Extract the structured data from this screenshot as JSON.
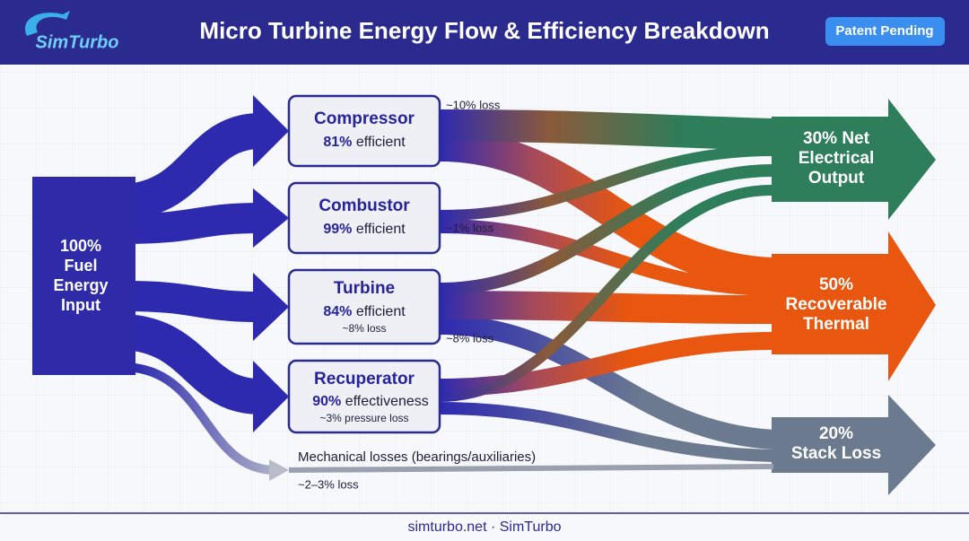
{
  "header": {
    "logo": "SimTurbo",
    "title": "Micro Turbine Energy Flow & Efficiency Breakdown",
    "badge": "Patent Pending"
  },
  "source": {
    "lines": [
      "100%",
      "Fuel",
      "Energy",
      "Input"
    ]
  },
  "nodes": [
    {
      "name": "Compressor",
      "value": "81%",
      "label": "efficient",
      "loss": "~10% loss"
    },
    {
      "name": "Combustor",
      "value": "99%",
      "label": "efficient",
      "loss": "~1% loss"
    },
    {
      "name": "Turbine",
      "value": "84%",
      "label": "efficient",
      "note": "~8% loss",
      "loss": "~8% loss"
    },
    {
      "name": "Recuperator",
      "value": "90%",
      "label": "effectiveness",
      "note": "~3% pressure loss"
    }
  ],
  "outputs": [
    {
      "lines": [
        "30% Net",
        "Electrical",
        "Output"
      ]
    },
    {
      "lines": [
        "50%",
        "Recoverable",
        "Thermal"
      ]
    },
    {
      "lines": [
        "20%",
        "Stack Loss"
      ]
    }
  ],
  "mechanical": {
    "label": "Mechanical losses (bearings/auxiliaries)",
    "loss": "~2–3% loss"
  },
  "footer": "simturbo.net · SimTurbo"
}
